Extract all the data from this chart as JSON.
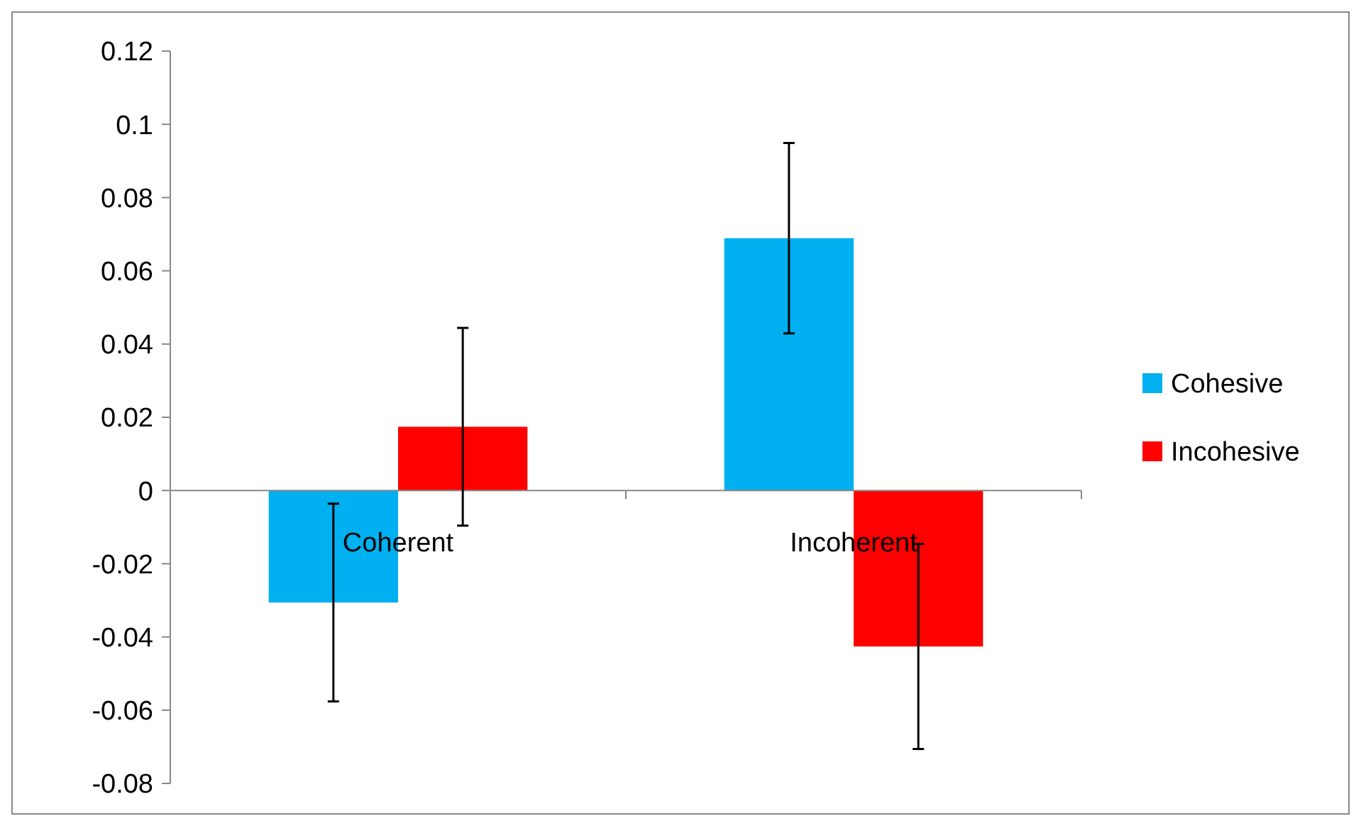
{
  "chart_data": {
    "type": "bar",
    "categories": [
      "Coherent",
      "Incoherent"
    ],
    "series": [
      {
        "name": "Cohesive",
        "color": "#00b0f0",
        "values": [
          -0.0306,
          0.0689
        ],
        "errors": [
          0.027,
          0.026
        ]
      },
      {
        "name": "Incohesive",
        "color": "#ff0000",
        "values": [
          0.0174,
          -0.0426
        ],
        "errors": [
          0.027,
          0.028
        ]
      }
    ],
    "ylim": [
      -0.08,
      0.12
    ],
    "yticks": [
      -0.08,
      -0.06,
      -0.04,
      -0.02,
      0,
      0.02,
      0.04,
      0.06,
      0.08,
      {
        "value": 0.1,
        "label": "0.1"
      },
      0.12
    ],
    "grid": false,
    "legend": "right"
  }
}
